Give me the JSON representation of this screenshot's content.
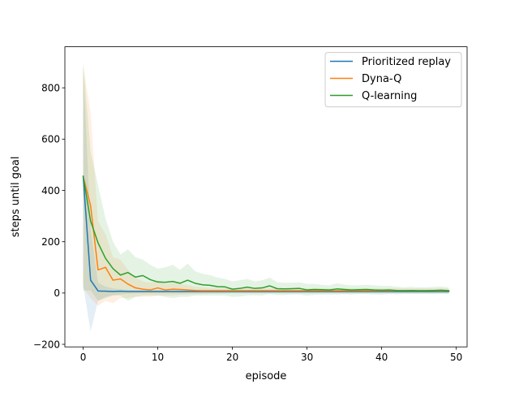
{
  "chart_data": {
    "type": "line",
    "title": "",
    "xlabel": "episode",
    "ylabel": "steps until goal",
    "xlim": [
      -2.45,
      51.45
    ],
    "ylim": [
      -210,
      960
    ],
    "xticks": [
      0,
      10,
      20,
      30,
      40,
      50
    ],
    "yticks": [
      -200,
      0,
      200,
      400,
      600,
      800
    ],
    "xtick_labels": [
      "0",
      "10",
      "20",
      "30",
      "40",
      "50"
    ],
    "ytick_labels": [
      "−200",
      "0",
      "200",
      "400",
      "600",
      "800"
    ],
    "grid": false,
    "legend_position": "upper right",
    "x": [
      0,
      1,
      2,
      3,
      4,
      5,
      6,
      7,
      8,
      9,
      10,
      11,
      12,
      13,
      14,
      15,
      16,
      17,
      18,
      19,
      20,
      21,
      22,
      23,
      24,
      25,
      26,
      27,
      28,
      29,
      30,
      31,
      32,
      33,
      34,
      35,
      36,
      37,
      38,
      39,
      40,
      41,
      42,
      43,
      44,
      45,
      46,
      47,
      48,
      49
    ],
    "series": [
      {
        "name": "Prioritized replay",
        "color": "#1f77b4",
        "values": [
          455,
          50,
          8,
          7,
          6,
          7,
          6,
          6,
          6,
          6,
          6,
          6,
          6,
          6,
          6,
          6,
          6,
          6,
          6,
          6,
          6,
          6,
          6,
          6,
          6,
          6,
          6,
          6,
          6,
          6,
          6,
          6,
          6,
          6,
          6,
          6,
          6,
          6,
          6,
          6,
          6,
          6,
          6,
          6,
          6,
          6,
          6,
          6,
          6,
          6
        ],
        "band_upper": [
          880,
          250,
          40,
          25,
          18,
          15,
          13,
          12,
          12,
          12,
          12,
          12,
          12,
          12,
          12,
          12,
          12,
          12,
          12,
          12,
          12,
          12,
          12,
          12,
          12,
          12,
          12,
          12,
          12,
          12,
          12,
          12,
          12,
          12,
          12,
          12,
          12,
          12,
          12,
          12,
          12,
          12,
          12,
          12,
          12,
          12,
          12,
          12,
          12,
          12
        ],
        "band_lower": [
          30,
          -150,
          -30,
          -15,
          -8,
          -5,
          -3,
          -2,
          -2,
          -2,
          -2,
          -2,
          -2,
          -2,
          -2,
          -2,
          -2,
          -2,
          -2,
          -2,
          -2,
          -2,
          -2,
          -2,
          -2,
          -2,
          -2,
          -2,
          -2,
          -2,
          -2,
          -2,
          -2,
          -2,
          -2,
          -2,
          -2,
          -2,
          -2,
          -2,
          -2,
          -2,
          -2,
          -2,
          -2,
          -2,
          -2,
          -2,
          -2,
          -2
        ]
      },
      {
        "name": "Dyna-Q",
        "color": "#ff7f0e",
        "values": [
          455,
          340,
          90,
          100,
          50,
          55,
          35,
          20,
          15,
          12,
          20,
          12,
          15,
          14,
          12,
          10,
          9,
          9,
          9,
          9,
          9,
          9,
          9,
          9,
          9,
          9,
          9,
          9,
          9,
          9,
          9,
          9,
          9,
          9,
          9,
          9,
          9,
          9,
          9,
          9,
          9,
          9,
          9,
          9,
          9,
          9,
          9,
          9,
          9,
          9
        ],
        "band_upper": [
          890,
          700,
          280,
          230,
          140,
          130,
          90,
          60,
          45,
          40,
          50,
          35,
          40,
          35,
          30,
          25,
          22,
          20,
          20,
          19,
          18,
          18,
          18,
          18,
          18,
          18,
          18,
          18,
          18,
          18,
          18,
          18,
          18,
          18,
          18,
          18,
          18,
          18,
          18,
          18,
          18,
          18,
          18,
          18,
          18,
          18,
          18,
          18,
          18,
          18
        ],
        "band_lower": [
          20,
          -20,
          -50,
          -30,
          -40,
          -20,
          -20,
          -15,
          -15,
          -15,
          -10,
          -10,
          -10,
          -7,
          -6,
          -5,
          -4,
          -3,
          -3,
          -2,
          0,
          0,
          0,
          0,
          0,
          0,
          0,
          0,
          0,
          0,
          0,
          0,
          0,
          0,
          0,
          0,
          0,
          0,
          0,
          0,
          0,
          0,
          0,
          0,
          0,
          0,
          0,
          0,
          0,
          0
        ]
      },
      {
        "name": "Q-learning",
        "color": "#2ca02c",
        "values": [
          455,
          280,
          195,
          135,
          95,
          70,
          80,
          62,
          68,
          52,
          43,
          42,
          45,
          38,
          50,
          38,
          32,
          30,
          25,
          24,
          15,
          18,
          23,
          18,
          20,
          28,
          17,
          16,
          17,
          18,
          12,
          14,
          13,
          12,
          16,
          14,
          12,
          13,
          14,
          12,
          11,
          12,
          10,
          9,
          10,
          9,
          9,
          10,
          11,
          9
        ],
        "band_upper": [
          900,
          550,
          420,
          290,
          200,
          150,
          170,
          140,
          130,
          110,
          95,
          100,
          110,
          90,
          115,
          85,
          75,
          70,
          60,
          55,
          45,
          50,
          55,
          45,
          50,
          60,
          42,
          40,
          40,
          42,
          35,
          35,
          32,
          30,
          38,
          33,
          30,
          30,
          32,
          30,
          28,
          28,
          25,
          22,
          24,
          22,
          22,
          24,
          25,
          22
        ],
        "band_lower": [
          10,
          10,
          -30,
          -20,
          -10,
          -10,
          -30,
          -15,
          -10,
          -10,
          -10,
          -15,
          -20,
          -15,
          -15,
          -10,
          -10,
          -10,
          -10,
          -10,
          -15,
          -14,
          -9,
          -9,
          -10,
          -4,
          -8,
          -8,
          -6,
          -6,
          -10,
          -7,
          -6,
          -6,
          -6,
          -5,
          -6,
          -4,
          -4,
          -6,
          -6,
          -4,
          -5,
          -4,
          -4,
          -4,
          -4,
          -4,
          -3,
          -4
        ]
      }
    ]
  }
}
